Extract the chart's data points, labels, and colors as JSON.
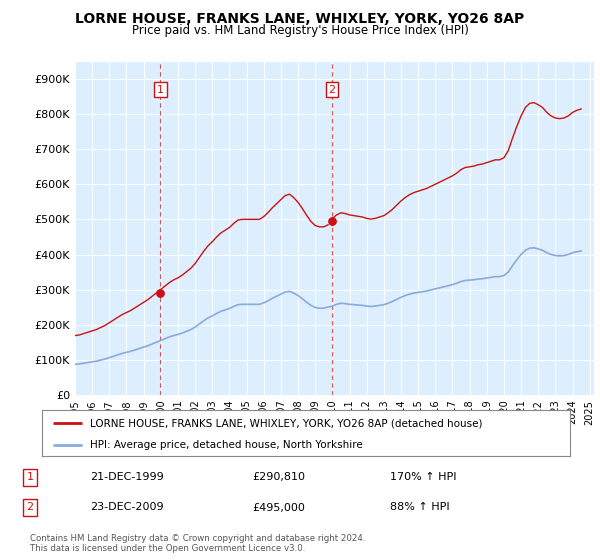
{
  "title": "LORNE HOUSE, FRANKS LANE, WHIXLEY, YORK, YO26 8AP",
  "subtitle": "Price paid vs. HM Land Registry's House Price Index (HPI)",
  "ylim": [
    0,
    950000
  ],
  "yticks": [
    0,
    100000,
    200000,
    300000,
    400000,
    500000,
    600000,
    700000,
    800000,
    900000
  ],
  "ytick_labels": [
    "£0",
    "£100K",
    "£200K",
    "£300K",
    "£400K",
    "£500K",
    "£600K",
    "£700K",
    "£800K",
    "£900K"
  ],
  "hpi_color": "#88aadd",
  "price_color": "#cc1111",
  "background_color": "#ddeeff",
  "legend_label_price": "LORNE HOUSE, FRANKS LANE, WHIXLEY, YORK, YO26 8AP (detached house)",
  "legend_label_hpi": "HPI: Average price, detached house, North Yorkshire",
  "transaction1_date": "21-DEC-1999",
  "transaction1_price": 290810,
  "transaction1_pct": "170% ↑ HPI",
  "transaction2_date": "23-DEC-2009",
  "transaction2_price": 495000,
  "transaction2_pct": "88% ↑ HPI",
  "footer": "Contains HM Land Registry data © Crown copyright and database right 2024.\nThis data is licensed under the Open Government Licence v3.0.",
  "hpi_x": [
    1995.0,
    1995.25,
    1995.5,
    1995.75,
    1996.0,
    1996.25,
    1996.5,
    1996.75,
    1997.0,
    1997.25,
    1997.5,
    1997.75,
    1998.0,
    1998.25,
    1998.5,
    1998.75,
    1999.0,
    1999.25,
    1999.5,
    1999.75,
    2000.0,
    2000.25,
    2000.5,
    2000.75,
    2001.0,
    2001.25,
    2001.5,
    2001.75,
    2002.0,
    2002.25,
    2002.5,
    2002.75,
    2003.0,
    2003.25,
    2003.5,
    2003.75,
    2004.0,
    2004.25,
    2004.5,
    2004.75,
    2005.0,
    2005.25,
    2005.5,
    2005.75,
    2006.0,
    2006.25,
    2006.5,
    2006.75,
    2007.0,
    2007.25,
    2007.5,
    2007.75,
    2008.0,
    2008.25,
    2008.5,
    2008.75,
    2009.0,
    2009.25,
    2009.5,
    2009.75,
    2010.0,
    2010.25,
    2010.5,
    2010.75,
    2011.0,
    2011.25,
    2011.5,
    2011.75,
    2012.0,
    2012.25,
    2012.5,
    2012.75,
    2013.0,
    2013.25,
    2013.5,
    2013.75,
    2014.0,
    2014.25,
    2014.5,
    2014.75,
    2015.0,
    2015.25,
    2015.5,
    2015.75,
    2016.0,
    2016.25,
    2016.5,
    2016.75,
    2017.0,
    2017.25,
    2017.5,
    2017.75,
    2018.0,
    2018.25,
    2018.5,
    2018.75,
    2019.0,
    2019.25,
    2019.5,
    2019.75,
    2020.0,
    2020.25,
    2020.5,
    2020.75,
    2021.0,
    2021.25,
    2021.5,
    2021.75,
    2022.0,
    2022.25,
    2022.5,
    2022.75,
    2023.0,
    2023.25,
    2023.5,
    2023.75,
    2024.0,
    2024.25,
    2024.5
  ],
  "hpi_y": [
    87000,
    88000,
    90000,
    92000,
    94000,
    96000,
    99000,
    102000,
    106000,
    110000,
    114000,
    118000,
    121000,
    124000,
    128000,
    132000,
    136000,
    140000,
    145000,
    150000,
    155000,
    160000,
    165000,
    169000,
    172000,
    176000,
    181000,
    186000,
    193000,
    202000,
    211000,
    219000,
    225000,
    232000,
    238000,
    242000,
    246000,
    252000,
    257000,
    258000,
    258000,
    258000,
    258000,
    258000,
    262000,
    268000,
    275000,
    281000,
    287000,
    293000,
    295000,
    290000,
    283000,
    274000,
    264000,
    255000,
    249000,
    247000,
    247000,
    250000,
    253000,
    258000,
    261000,
    260000,
    258000,
    257000,
    256000,
    255000,
    253000,
    252000,
    253000,
    255000,
    257000,
    261000,
    266000,
    272000,
    278000,
    283000,
    287000,
    290000,
    292000,
    294000,
    296000,
    299000,
    302000,
    305000,
    308000,
    311000,
    314000,
    318000,
    323000,
    326000,
    327000,
    328000,
    330000,
    331000,
    333000,
    335000,
    337000,
    337000,
    340000,
    350000,
    368000,
    385000,
    400000,
    412000,
    418000,
    419000,
    416000,
    412000,
    405000,
    400000,
    397000,
    396000,
    397000,
    400000,
    405000,
    408000,
    410000
  ],
  "transaction1_x": 1999.97,
  "transaction1_hpi": 150000,
  "transaction2_x": 2009.98,
  "transaction2_hpi": 249000,
  "xmin": 1995.0,
  "xmax": 2025.25,
  "xtick_years": [
    1995,
    1996,
    1997,
    1998,
    1999,
    2000,
    2001,
    2002,
    2003,
    2004,
    2005,
    2006,
    2007,
    2008,
    2009,
    2010,
    2011,
    2012,
    2013,
    2014,
    2015,
    2016,
    2017,
    2018,
    2019,
    2020,
    2021,
    2022,
    2023,
    2024,
    2025
  ]
}
